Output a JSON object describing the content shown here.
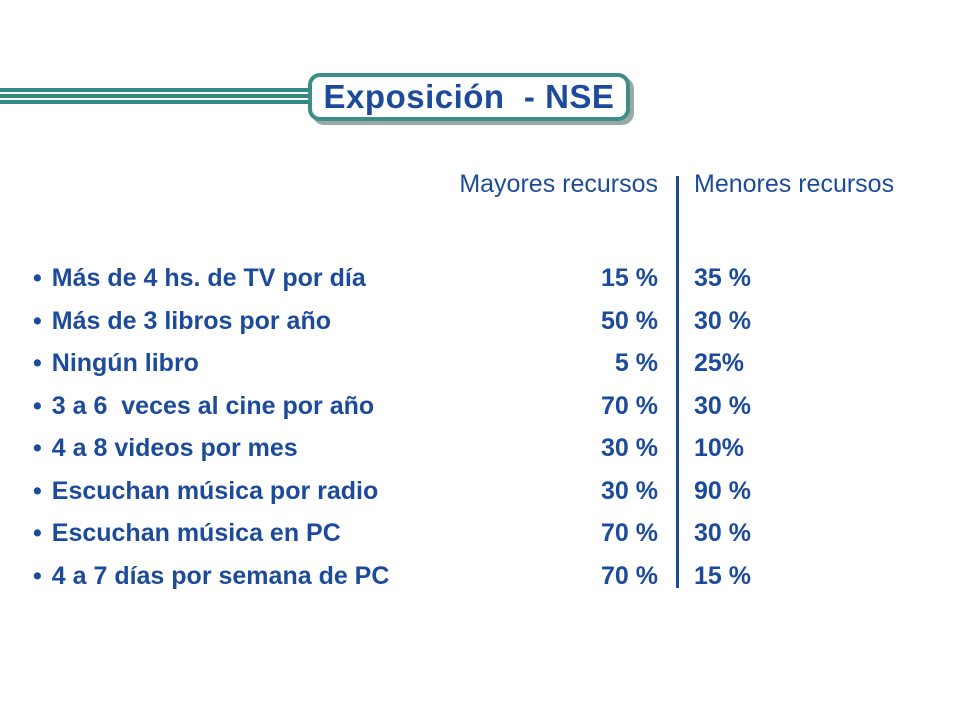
{
  "title": "Exposición  - NSE",
  "columns": {
    "high": "Mayores recursos",
    "low": "Menores recursos"
  },
  "bullet": "•",
  "rows": [
    {
      "label": "Más de 4 hs. de TV por día",
      "high": "15 %",
      "low": "35 %"
    },
    {
      "label": "Más de 3 libros por año",
      "high": "50 %",
      "low": "30 %"
    },
    {
      "label": "Ningún libro",
      "high": "5 %",
      "low": "25%"
    },
    {
      "label": "3 a 6  veces al cine por año",
      "high": "70 %",
      "low": "30 %"
    },
    {
      "label": "4 a 8 videos por mes",
      "high": "30 %",
      "low": "10%"
    },
    {
      "label": "Escuchan música por radio",
      "high": "30 %",
      "low": "90 %"
    },
    {
      "label": "Escuchan música en PC",
      "high": "70 %",
      "low": "30 %"
    },
    {
      "label": "4 a 7 días por semana de PC",
      "high": "70 %",
      "low": "15 %"
    }
  ],
  "colors": {
    "text": "#1d4b9c",
    "frame": "#3d8d88",
    "shadow": "#9aa9a7"
  }
}
